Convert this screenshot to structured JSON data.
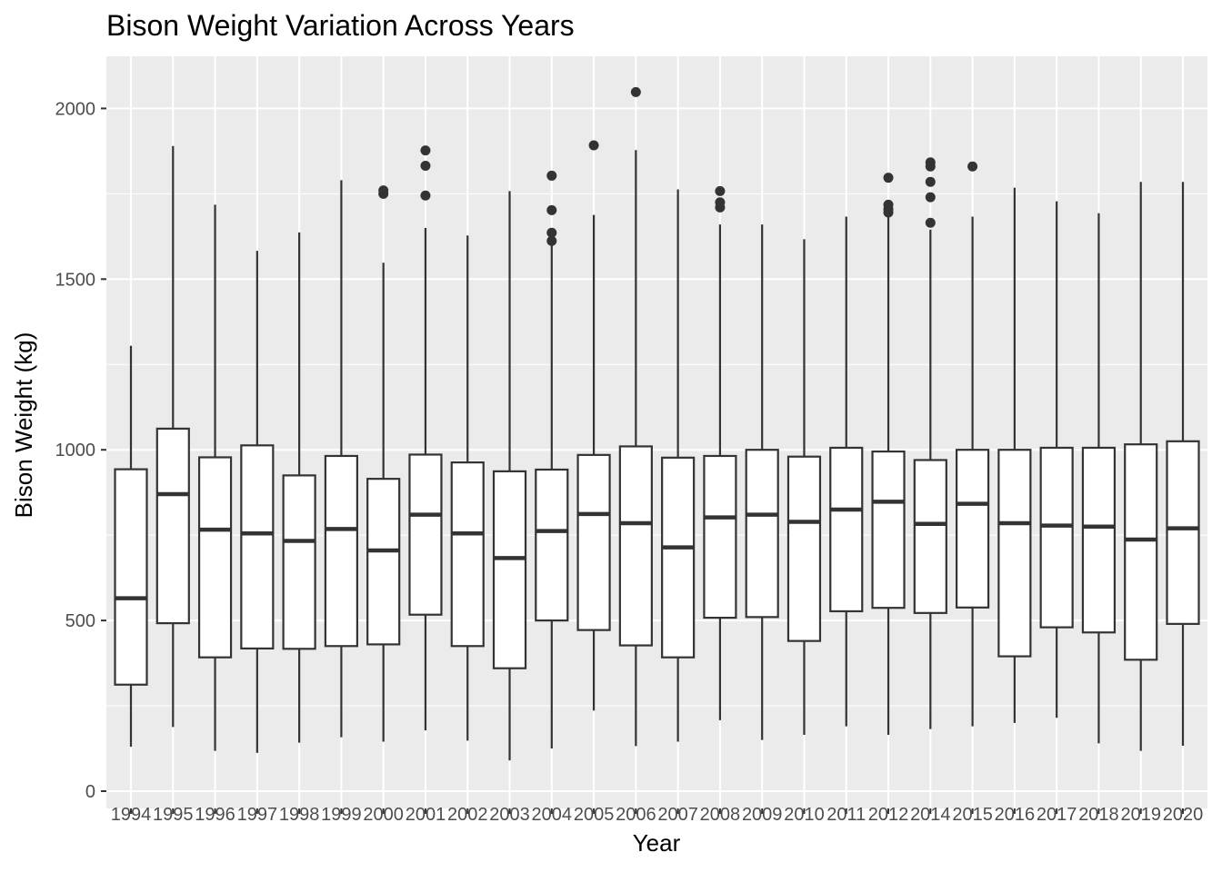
{
  "chart_data": {
    "type": "boxplot",
    "title": "Bison Weight Variation Across Years",
    "xlabel": "Year",
    "ylabel": "Bison Weight (kg)",
    "ylim": [
      -150,
      2150
    ],
    "yticks": [
      0,
      500,
      1000,
      1500,
      2000
    ],
    "grid": true,
    "legend": "none",
    "colors": {
      "panel_bg": "#ebebeb",
      "grid": "#ffffff",
      "box_fill": "#ffffff",
      "box_stroke": "#333333",
      "outlier": "#333333"
    },
    "categories": [
      "1994",
      "1995",
      "1996",
      "1997",
      "1998",
      "1999",
      "2000",
      "2001",
      "2002",
      "2003",
      "2004",
      "2005",
      "2006",
      "2007",
      "2008",
      "2009",
      "2010",
      "2011",
      "2012",
      "2014",
      "2015",
      "2016",
      "2017",
      "2018",
      "2019",
      "2020"
    ],
    "boxes": [
      {
        "min": 130,
        "q1": 312,
        "median": 565,
        "q3": 943,
        "max": 1305,
        "outliers": []
      },
      {
        "min": 188,
        "q1": 492,
        "median": 870,
        "q3": 1062,
        "max": 1890,
        "outliers": []
      },
      {
        "min": 118,
        "q1": 392,
        "median": 766,
        "q3": 978,
        "max": 1718,
        "outliers": []
      },
      {
        "min": 112,
        "q1": 418,
        "median": 755,
        "q3": 1013,
        "max": 1583,
        "outliers": []
      },
      {
        "min": 142,
        "q1": 417,
        "median": 733,
        "q3": 925,
        "max": 1637,
        "outliers": []
      },
      {
        "min": 158,
        "q1": 425,
        "median": 768,
        "q3": 982,
        "max": 1790,
        "outliers": []
      },
      {
        "min": 145,
        "q1": 430,
        "median": 705,
        "q3": 915,
        "max": 1548,
        "outliers": [
          1750,
          1760
        ]
      },
      {
        "min": 178,
        "q1": 517,
        "median": 810,
        "q3": 986,
        "max": 1650,
        "outliers": [
          1745,
          1832,
          1877
        ]
      },
      {
        "min": 148,
        "q1": 425,
        "median": 755,
        "q3": 963,
        "max": 1628,
        "outliers": []
      },
      {
        "min": 90,
        "q1": 360,
        "median": 683,
        "q3": 937,
        "max": 1758,
        "outliers": []
      },
      {
        "min": 125,
        "q1": 500,
        "median": 762,
        "q3": 942,
        "max": 1608,
        "outliers": [
          1612,
          1636,
          1702,
          1803
        ]
      },
      {
        "min": 236,
        "q1": 472,
        "median": 812,
        "q3": 985,
        "max": 1688,
        "outliers": [
          1892
        ]
      },
      {
        "min": 132,
        "q1": 427,
        "median": 785,
        "q3": 1010,
        "max": 1878,
        "outliers": [
          2048
        ]
      },
      {
        "min": 145,
        "q1": 392,
        "median": 714,
        "q3": 977,
        "max": 1763,
        "outliers": []
      },
      {
        "min": 208,
        "q1": 508,
        "median": 802,
        "q3": 982,
        "max": 1660,
        "outliers": [
          1710,
          1725,
          1758
        ]
      },
      {
        "min": 150,
        "q1": 510,
        "median": 810,
        "q3": 1000,
        "max": 1660,
        "outliers": []
      },
      {
        "min": 165,
        "q1": 440,
        "median": 789,
        "q3": 980,
        "max": 1617,
        "outliers": []
      },
      {
        "min": 190,
        "q1": 527,
        "median": 825,
        "q3": 1006,
        "max": 1683,
        "outliers": []
      },
      {
        "min": 165,
        "q1": 537,
        "median": 848,
        "q3": 995,
        "max": 1683,
        "outliers": [
          1695,
          1705,
          1718,
          1797
        ]
      },
      {
        "min": 182,
        "q1": 522,
        "median": 783,
        "q3": 970,
        "max": 1645,
        "outliers": [
          1665,
          1740,
          1785,
          1830,
          1842
        ]
      },
      {
        "min": 190,
        "q1": 538,
        "median": 842,
        "q3": 1000,
        "max": 1683,
        "outliers": [
          1830
        ]
      },
      {
        "min": 200,
        "q1": 395,
        "median": 785,
        "q3": 1000,
        "max": 1768,
        "outliers": []
      },
      {
        "min": 215,
        "q1": 480,
        "median": 778,
        "q3": 1006,
        "max": 1728,
        "outliers": []
      },
      {
        "min": 140,
        "q1": 465,
        "median": 775,
        "q3": 1006,
        "max": 1693,
        "outliers": []
      },
      {
        "min": 118,
        "q1": 385,
        "median": 737,
        "q3": 1016,
        "max": 1785,
        "outliers": []
      },
      {
        "min": 133,
        "q1": 490,
        "median": 770,
        "q3": 1025,
        "max": 1785,
        "outliers": []
      }
    ]
  }
}
